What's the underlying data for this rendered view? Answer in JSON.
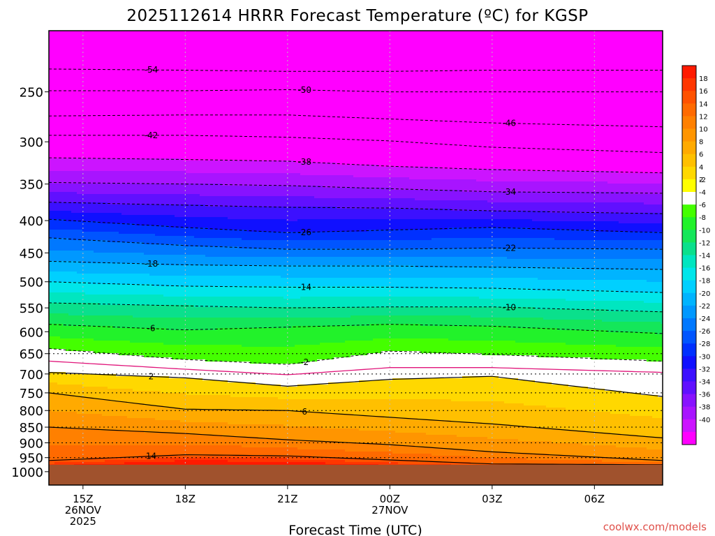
{
  "chart_data": {
    "type": "heatmap",
    "title": "2025112614 HRRR Forecast Temperature (ºC) for KGSP",
    "xlabel": "Forecast Time (UTC)",
    "ylabel": "",
    "credit": "coolwx.com/models",
    "x_ticks": [
      {
        "hour": 0,
        "lines": [
          "15Z",
          "26NOV",
          "2025"
        ]
      },
      {
        "hour": 3,
        "lines": [
          "18Z"
        ]
      },
      {
        "hour": 6,
        "lines": [
          "21Z"
        ]
      },
      {
        "hour": 9,
        "lines": [
          "00Z",
          "27NOV"
        ]
      },
      {
        "hour": 12,
        "lines": [
          "03Z"
        ]
      },
      {
        "hour": 15,
        "lines": [
          "06Z"
        ]
      }
    ],
    "xlim_hours": [
      -1,
      17
    ],
    "y_ticks": [
      "250",
      "300",
      "350",
      "400",
      "450",
      "500",
      "550",
      "600",
      "650",
      "700",
      "750",
      "800",
      "850",
      "900",
      "950",
      "1000"
    ],
    "ylim_hpa": [
      200,
      1050
    ],
    "surface_pressure_hpa": 975,
    "dotted_grid_levels_hpa": [
      650,
      700,
      750,
      800,
      850,
      900,
      950
    ],
    "colorbar": {
      "labels": [
        "18",
        "16",
        "14",
        "12",
        "10",
        "8",
        "6",
        "4",
        "2",
        "-2",
        "-4",
        "-6",
        "-8",
        "-10",
        "-12",
        "-14",
        "-16",
        "-18",
        "-20",
        "-22",
        "-24",
        "-26",
        "-28",
        "-30",
        "-32",
        "-34",
        "-36",
        "-38",
        "-40"
      ],
      "colors": [
        "#ff1a00",
        "#ff3600",
        "#ff5200",
        "#ff6a00",
        "#ff8000",
        "#ff9500",
        "#ffaa00",
        "#ffc000",
        "#ffd800",
        "#ffff00",
        "#ffffff",
        "#44ff00",
        "#22f22a",
        "#14e65a",
        "#0ae08c",
        "#00e6c0",
        "#00e6ea",
        "#00d0ff",
        "#00b4ff",
        "#0098ff",
        "#0078ff",
        "#0055ff",
        "#0030ff",
        "#1010ff",
        "#3c10ff",
        "#6010ff",
        "#8812ff",
        "#a814ff",
        "#cc14ff",
        "#ff00ff"
      ]
    },
    "isotherms": [
      {
        "value": -54,
        "label": "-54",
        "pressures_hpa": [
          230,
          231,
          232,
          232,
          231,
          231
        ],
        "style": "dashed"
      },
      {
        "value": -50,
        "label": "-50",
        "pressures_hpa": [
          249,
          249,
          248,
          250,
          250,
          250
        ],
        "style": "dashed"
      },
      {
        "value": -46,
        "label": "-46",
        "pressures_hpa": [
          273,
          272,
          272,
          276,
          280,
          284
        ],
        "style": "dashed"
      },
      {
        "value": -42,
        "label": "-42",
        "pressures_hpa": [
          293,
          293,
          295,
          299,
          306,
          312
        ],
        "style": "dashed"
      },
      {
        "value": -38,
        "label": "-38",
        "pressures_hpa": [
          318,
          320,
          322,
          328,
          332,
          336
        ],
        "style": "dashed"
      },
      {
        "value": -34,
        "label": "-34",
        "pressures_hpa": [
          348,
          350,
          352,
          356,
          360,
          362
        ],
        "style": "dashed"
      },
      {
        "value": -30,
        "label": "",
        "pressures_hpa": [
          374,
          378,
          381,
          382,
          386,
          390
        ],
        "style": "dashed"
      },
      {
        "value": -26,
        "label": "-26",
        "pressures_hpa": [
          398,
          410,
          418,
          414,
          410,
          418
        ],
        "style": "dashed"
      },
      {
        "value": -22,
        "label": "-22",
        "pressures_hpa": [
          426,
          438,
          444,
          444,
          442,
          444
        ],
        "style": "dashed"
      },
      {
        "value": -18,
        "label": "-18",
        "pressures_hpa": [
          464,
          470,
          472,
          472,
          474,
          478
        ],
        "style": "dashed"
      },
      {
        "value": -14,
        "label": "-14",
        "pressures_hpa": [
          500,
          508,
          510,
          510,
          512,
          520
        ],
        "style": "dashed"
      },
      {
        "value": -10,
        "label": "-10",
        "pressures_hpa": [
          540,
          546,
          550,
          548,
          548,
          558
        ],
        "style": "dashed"
      },
      {
        "value": -6,
        "label": "-6",
        "pressures_hpa": [
          584,
          596,
          590,
          584,
          588,
          604
        ],
        "style": "dashed"
      },
      {
        "value": -2,
        "label": "-2",
        "pressures_hpa": [
          638,
          664,
          676,
          644,
          652,
          668
        ],
        "style": "dashed"
      },
      {
        "value": 0,
        "label": "",
        "pressures_hpa": [
          668,
          688,
          702,
          684,
          684,
          696
        ],
        "style": "freezing"
      },
      {
        "value": 2,
        "label": "2",
        "pressures_hpa": [
          696,
          710,
          732,
          714,
          706,
          760
        ],
        "style": "solid"
      },
      {
        "value": 6,
        "label": "6",
        "pressures_hpa": [
          750,
          796,
          800,
          820,
          840,
          884
        ],
        "style": "solid"
      },
      {
        "value": 10,
        "label": "",
        "pressures_hpa": [
          850,
          870,
          890,
          906,
          930,
          960
        ],
        "style": "solid"
      },
      {
        "value": 14,
        "label": "14",
        "pressures_hpa": [
          960,
          940,
          944,
          958,
          972,
          975
        ],
        "style": "solid"
      }
    ],
    "isotherm_hours": [
      -1,
      3,
      6,
      9,
      12,
      17
    ]
  }
}
